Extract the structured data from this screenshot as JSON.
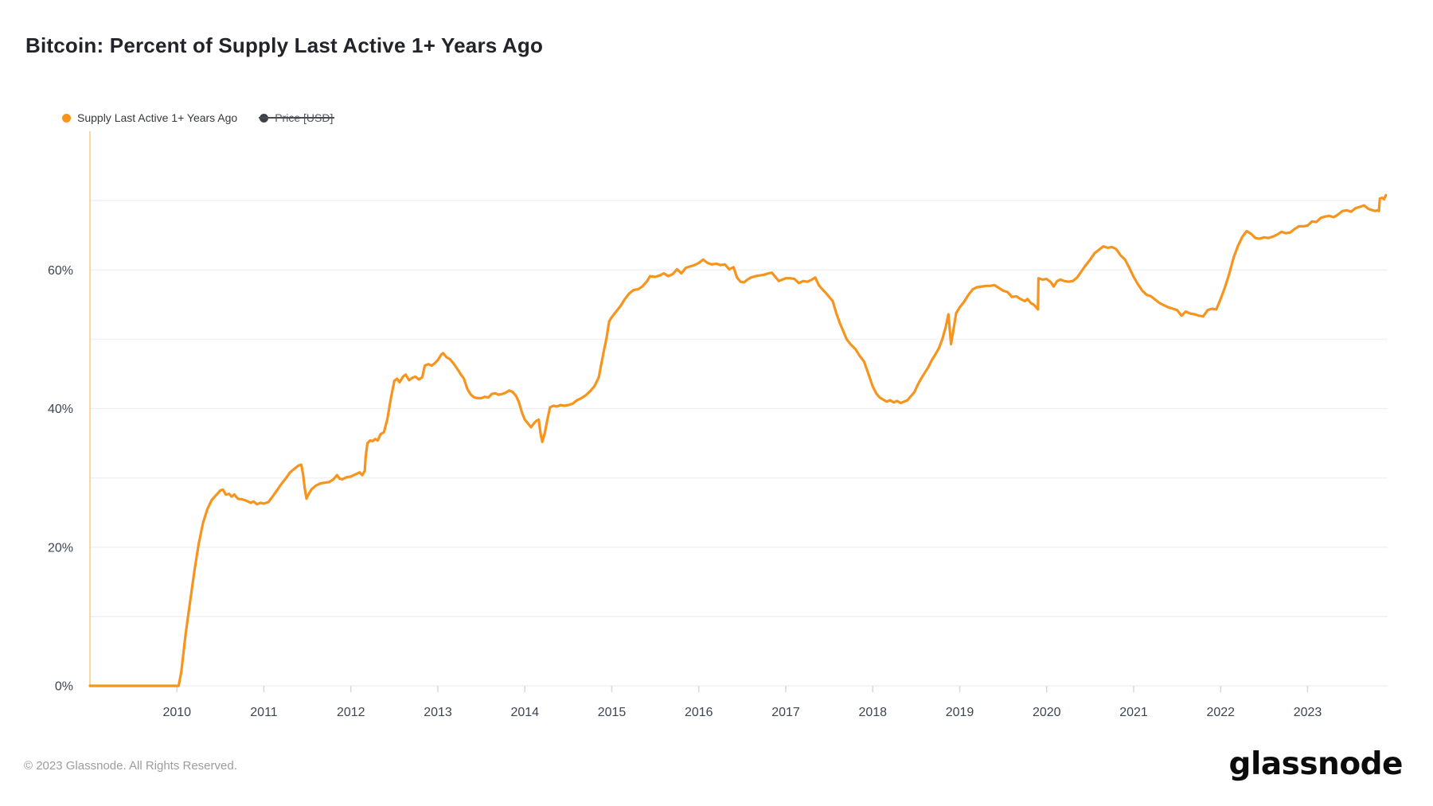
{
  "header": {
    "title": "Bitcoin: Percent of Supply Last Active 1+ Years Ago"
  },
  "legend": {
    "items": [
      {
        "label": "Supply Last Active 1+ Years Ago",
        "color": "#f7941d",
        "enabled": true
      },
      {
        "label": "Price [USD]",
        "color": "#3d4148",
        "enabled": false
      }
    ]
  },
  "footer": {
    "copyright": "© 2023 Glassnode. All Rights Reserved.",
    "brand": "glassnode"
  },
  "chart_data": {
    "type": "line",
    "title": "Bitcoin: Percent of Supply Last Active 1+ Years Ago",
    "series_name": "Supply Last Active 1+ Years Ago",
    "line_color": "#f7941d",
    "axis_line_color": "#f7941d",
    "grid_color": "#f1f1f4",
    "tick_color": "#d8d8dc",
    "label_color": "#3e4450",
    "legend_position": "top-left",
    "grid": true,
    "grid_step": 10,
    "grid_max": 70,
    "xlim": [
      2009.0,
      2023.92
    ],
    "ylim": [
      0,
      80
    ],
    "x_ticks": [
      2010,
      2011,
      2012,
      2013,
      2014,
      2015,
      2016,
      2017,
      2018,
      2019,
      2020,
      2021,
      2022,
      2023
    ],
    "y_ticks": [
      0,
      20,
      40,
      60
    ],
    "y_tick_suffix": "%",
    "points": [
      [
        2009.0,
        0
      ],
      [
        2009.5,
        0
      ],
      [
        2010.02,
        0
      ],
      [
        2010.05,
        2
      ],
      [
        2010.1,
        7.5
      ],
      [
        2010.15,
        12
      ],
      [
        2010.2,
        16.5
      ],
      [
        2010.25,
        20.5
      ],
      [
        2010.3,
        23.5
      ],
      [
        2010.35,
        25.5
      ],
      [
        2010.4,
        26.8
      ],
      [
        2010.45,
        27.5
      ],
      [
        2010.5,
        28.2
      ],
      [
        2010.53,
        28.3
      ],
      [
        2010.56,
        27.6
      ],
      [
        2010.6,
        27.7
      ],
      [
        2010.63,
        27.3
      ],
      [
        2010.66,
        27.6
      ],
      [
        2010.7,
        27.0
      ],
      [
        2010.75,
        26.9
      ],
      [
        2010.8,
        26.7
      ],
      [
        2010.85,
        26.4
      ],
      [
        2010.88,
        26.6
      ],
      [
        2010.92,
        26.2
      ],
      [
        2010.96,
        26.4
      ],
      [
        2011.0,
        26.3
      ],
      [
        2011.05,
        26.5
      ],
      [
        2011.1,
        27.3
      ],
      [
        2011.15,
        28.2
      ],
      [
        2011.2,
        29.1
      ],
      [
        2011.25,
        29.9
      ],
      [
        2011.3,
        30.8
      ],
      [
        2011.35,
        31.3
      ],
      [
        2011.4,
        31.8
      ],
      [
        2011.43,
        31.9
      ],
      [
        2011.45,
        30.5
      ],
      [
        2011.47,
        28.5
      ],
      [
        2011.49,
        27.0
      ],
      [
        2011.52,
        27.8
      ],
      [
        2011.55,
        28.4
      ],
      [
        2011.6,
        28.9
      ],
      [
        2011.65,
        29.2
      ],
      [
        2011.7,
        29.3
      ],
      [
        2011.75,
        29.4
      ],
      [
        2011.8,
        29.8
      ],
      [
        2011.84,
        30.4
      ],
      [
        2011.87,
        29.9
      ],
      [
        2011.9,
        29.8
      ],
      [
        2011.95,
        30.1
      ],
      [
        2012.0,
        30.2
      ],
      [
        2012.05,
        30.5
      ],
      [
        2012.1,
        30.8
      ],
      [
        2012.13,
        30.4
      ],
      [
        2012.16,
        31.0
      ],
      [
        2012.17,
        33.0
      ],
      [
        2012.19,
        35.0
      ],
      [
        2012.22,
        35.4
      ],
      [
        2012.25,
        35.3
      ],
      [
        2012.28,
        35.6
      ],
      [
        2012.31,
        35.4
      ],
      [
        2012.34,
        36.3
      ],
      [
        2012.38,
        36.6
      ],
      [
        2012.42,
        38.5
      ],
      [
        2012.46,
        41.5
      ],
      [
        2012.5,
        44.0
      ],
      [
        2012.53,
        44.3
      ],
      [
        2012.56,
        43.8
      ],
      [
        2012.6,
        44.6
      ],
      [
        2012.63,
        44.9
      ],
      [
        2012.67,
        44.1
      ],
      [
        2012.7,
        44.4
      ],
      [
        2012.74,
        44.6
      ],
      [
        2012.78,
        44.2
      ],
      [
        2012.82,
        44.5
      ],
      [
        2012.85,
        46.2
      ],
      [
        2012.89,
        46.4
      ],
      [
        2012.93,
        46.2
      ],
      [
        2012.97,
        46.6
      ],
      [
        2013.0,
        47.0
      ],
      [
        2013.04,
        47.8
      ],
      [
        2013.06,
        48.0
      ],
      [
        2013.1,
        47.4
      ],
      [
        2013.14,
        47.1
      ],
      [
        2013.18,
        46.5
      ],
      [
        2013.22,
        45.8
      ],
      [
        2013.26,
        45.0
      ],
      [
        2013.3,
        44.3
      ],
      [
        2013.34,
        42.8
      ],
      [
        2013.38,
        42.0
      ],
      [
        2013.42,
        41.6
      ],
      [
        2013.46,
        41.5
      ],
      [
        2013.5,
        41.5
      ],
      [
        2013.54,
        41.7
      ],
      [
        2013.58,
        41.6
      ],
      [
        2013.62,
        42.1
      ],
      [
        2013.66,
        42.2
      ],
      [
        2013.7,
        42.0
      ],
      [
        2013.74,
        42.1
      ],
      [
        2013.78,
        42.3
      ],
      [
        2013.82,
        42.6
      ],
      [
        2013.86,
        42.4
      ],
      [
        2013.9,
        41.8
      ],
      [
        2013.93,
        41.0
      ],
      [
        2013.97,
        39.3
      ],
      [
        2014.0,
        38.4
      ],
      [
        2014.04,
        37.8
      ],
      [
        2014.07,
        37.3
      ],
      [
        2014.1,
        37.8
      ],
      [
        2014.13,
        38.2
      ],
      [
        2014.16,
        38.4
      ],
      [
        2014.18,
        36.5
      ],
      [
        2014.2,
        35.2
      ],
      [
        2014.23,
        36.5
      ],
      [
        2014.26,
        38.5
      ],
      [
        2014.29,
        40.2
      ],
      [
        2014.33,
        40.4
      ],
      [
        2014.37,
        40.3
      ],
      [
        2014.41,
        40.5
      ],
      [
        2014.45,
        40.4
      ],
      [
        2014.5,
        40.5
      ],
      [
        2014.55,
        40.7
      ],
      [
        2014.6,
        41.2
      ],
      [
        2014.65,
        41.5
      ],
      [
        2014.7,
        41.9
      ],
      [
        2014.75,
        42.5
      ],
      [
        2014.8,
        43.2
      ],
      [
        2014.85,
        44.5
      ],
      [
        2014.9,
        47.8
      ],
      [
        2014.94,
        50.2
      ],
      [
        2014.97,
        52.6
      ],
      [
        2015.0,
        53.2
      ],
      [
        2015.05,
        54.0
      ],
      [
        2015.1,
        54.8
      ],
      [
        2015.15,
        55.8
      ],
      [
        2015.2,
        56.6
      ],
      [
        2015.25,
        57.1
      ],
      [
        2015.3,
        57.2
      ],
      [
        2015.35,
        57.6
      ],
      [
        2015.4,
        58.3
      ],
      [
        2015.44,
        59.1
      ],
      [
        2015.5,
        59.0
      ],
      [
        2015.55,
        59.2
      ],
      [
        2015.6,
        59.5
      ],
      [
        2015.65,
        59.1
      ],
      [
        2015.7,
        59.4
      ],
      [
        2015.75,
        60.1
      ],
      [
        2015.8,
        59.5
      ],
      [
        2015.85,
        60.3
      ],
      [
        2015.9,
        60.5
      ],
      [
        2015.95,
        60.7
      ],
      [
        2016.0,
        61.0
      ],
      [
        2016.05,
        61.5
      ],
      [
        2016.1,
        61.0
      ],
      [
        2016.15,
        60.8
      ],
      [
        2016.2,
        60.9
      ],
      [
        2016.25,
        60.7
      ],
      [
        2016.3,
        60.8
      ],
      [
        2016.35,
        60.1
      ],
      [
        2016.4,
        60.4
      ],
      [
        2016.44,
        58.9
      ],
      [
        2016.48,
        58.3
      ],
      [
        2016.52,
        58.2
      ],
      [
        2016.56,
        58.6
      ],
      [
        2016.6,
        58.9
      ],
      [
        2016.65,
        59.1
      ],
      [
        2016.7,
        59.2
      ],
      [
        2016.75,
        59.3
      ],
      [
        2016.8,
        59.5
      ],
      [
        2016.84,
        59.6
      ],
      [
        2016.88,
        59.0
      ],
      [
        2016.92,
        58.4
      ],
      [
        2016.96,
        58.6
      ],
      [
        2017.0,
        58.8
      ],
      [
        2017.05,
        58.8
      ],
      [
        2017.1,
        58.7
      ],
      [
        2017.15,
        58.1
      ],
      [
        2017.2,
        58.4
      ],
      [
        2017.25,
        58.3
      ],
      [
        2017.3,
        58.6
      ],
      [
        2017.34,
        58.9
      ],
      [
        2017.38,
        57.8
      ],
      [
        2017.42,
        57.2
      ],
      [
        2017.46,
        56.7
      ],
      [
        2017.5,
        56.1
      ],
      [
        2017.54,
        55.5
      ],
      [
        2017.58,
        53.8
      ],
      [
        2017.62,
        52.4
      ],
      [
        2017.66,
        51.2
      ],
      [
        2017.7,
        50.0
      ],
      [
        2017.75,
        49.2
      ],
      [
        2017.8,
        48.6
      ],
      [
        2017.85,
        47.6
      ],
      [
        2017.9,
        46.8
      ],
      [
        2017.95,
        45.0
      ],
      [
        2018.0,
        43.2
      ],
      [
        2018.04,
        42.2
      ],
      [
        2018.08,
        41.6
      ],
      [
        2018.12,
        41.3
      ],
      [
        2018.16,
        41.0
      ],
      [
        2018.2,
        41.2
      ],
      [
        2018.24,
        40.9
      ],
      [
        2018.28,
        41.1
      ],
      [
        2018.32,
        40.8
      ],
      [
        2018.36,
        41.0
      ],
      [
        2018.4,
        41.2
      ],
      [
        2018.44,
        41.8
      ],
      [
        2018.48,
        42.4
      ],
      [
        2018.52,
        43.5
      ],
      [
        2018.56,
        44.4
      ],
      [
        2018.6,
        45.2
      ],
      [
        2018.64,
        46.0
      ],
      [
        2018.68,
        47.0
      ],
      [
        2018.72,
        47.8
      ],
      [
        2018.76,
        48.7
      ],
      [
        2018.8,
        50.0
      ],
      [
        2018.84,
        51.8
      ],
      [
        2018.87,
        53.6
      ],
      [
        2018.9,
        49.3
      ],
      [
        2018.93,
        51.5
      ],
      [
        2018.96,
        53.8
      ],
      [
        2019.0,
        54.6
      ],
      [
        2019.05,
        55.4
      ],
      [
        2019.1,
        56.4
      ],
      [
        2019.15,
        57.2
      ],
      [
        2019.2,
        57.5
      ],
      [
        2019.25,
        57.6
      ],
      [
        2019.3,
        57.7
      ],
      [
        2019.35,
        57.7
      ],
      [
        2019.4,
        57.8
      ],
      [
        2019.45,
        57.4
      ],
      [
        2019.5,
        57.0
      ],
      [
        2019.55,
        56.8
      ],
      [
        2019.6,
        56.1
      ],
      [
        2019.65,
        56.2
      ],
      [
        2019.7,
        55.8
      ],
      [
        2019.75,
        55.5
      ],
      [
        2019.78,
        55.8
      ],
      [
        2019.82,
        55.2
      ],
      [
        2019.85,
        55.0
      ],
      [
        2019.88,
        54.6
      ],
      [
        2019.9,
        54.3
      ],
      [
        2019.905,
        58.8
      ],
      [
        2019.95,
        58.6
      ],
      [
        2020.0,
        58.7
      ],
      [
        2020.05,
        58.2
      ],
      [
        2020.08,
        57.6
      ],
      [
        2020.12,
        58.4
      ],
      [
        2020.16,
        58.6
      ],
      [
        2020.2,
        58.4
      ],
      [
        2020.25,
        58.3
      ],
      [
        2020.3,
        58.4
      ],
      [
        2020.35,
        58.9
      ],
      [
        2020.4,
        59.8
      ],
      [
        2020.45,
        60.7
      ],
      [
        2020.5,
        61.5
      ],
      [
        2020.55,
        62.4
      ],
      [
        2020.6,
        62.9
      ],
      [
        2020.65,
        63.4
      ],
      [
        2020.7,
        63.2
      ],
      [
        2020.75,
        63.3
      ],
      [
        2020.8,
        63.0
      ],
      [
        2020.85,
        62.1
      ],
      [
        2020.9,
        61.5
      ],
      [
        2020.95,
        60.3
      ],
      [
        2021.0,
        59.0
      ],
      [
        2021.05,
        57.9
      ],
      [
        2021.1,
        57.0
      ],
      [
        2021.15,
        56.4
      ],
      [
        2021.2,
        56.2
      ],
      [
        2021.25,
        55.7
      ],
      [
        2021.3,
        55.2
      ],
      [
        2021.35,
        54.9
      ],
      [
        2021.4,
        54.6
      ],
      [
        2021.45,
        54.4
      ],
      [
        2021.5,
        54.2
      ],
      [
        2021.55,
        53.4
      ],
      [
        2021.6,
        54.0
      ],
      [
        2021.65,
        53.7
      ],
      [
        2021.7,
        53.6
      ],
      [
        2021.75,
        53.4
      ],
      [
        2021.8,
        53.3
      ],
      [
        2021.85,
        54.2
      ],
      [
        2021.9,
        54.4
      ],
      [
        2021.95,
        54.3
      ],
      [
        2022.0,
        55.8
      ],
      [
        2022.05,
        57.5
      ],
      [
        2022.1,
        59.5
      ],
      [
        2022.15,
        61.8
      ],
      [
        2022.2,
        63.5
      ],
      [
        2022.25,
        64.8
      ],
      [
        2022.3,
        65.6
      ],
      [
        2022.35,
        65.2
      ],
      [
        2022.4,
        64.6
      ],
      [
        2022.45,
        64.5
      ],
      [
        2022.5,
        64.7
      ],
      [
        2022.55,
        64.6
      ],
      [
        2022.6,
        64.8
      ],
      [
        2022.65,
        65.1
      ],
      [
        2022.7,
        65.5
      ],
      [
        2022.75,
        65.3
      ],
      [
        2022.8,
        65.4
      ],
      [
        2022.85,
        65.9
      ],
      [
        2022.9,
        66.3
      ],
      [
        2022.95,
        66.3
      ],
      [
        2023.0,
        66.4
      ],
      [
        2023.05,
        67.0
      ],
      [
        2023.1,
        66.9
      ],
      [
        2023.15,
        67.5
      ],
      [
        2023.2,
        67.7
      ],
      [
        2023.25,
        67.8
      ],
      [
        2023.3,
        67.6
      ],
      [
        2023.35,
        68.0
      ],
      [
        2023.4,
        68.5
      ],
      [
        2023.45,
        68.6
      ],
      [
        2023.5,
        68.4
      ],
      [
        2023.55,
        68.9
      ],
      [
        2023.6,
        69.1
      ],
      [
        2023.65,
        69.3
      ],
      [
        2023.7,
        68.8
      ],
      [
        2023.75,
        68.6
      ],
      [
        2023.78,
        68.5
      ],
      [
        2023.8,
        68.6
      ],
      [
        2023.82,
        68.5
      ],
      [
        2023.83,
        70.3
      ],
      [
        2023.86,
        70.4
      ],
      [
        2023.88,
        70.2
      ],
      [
        2023.9,
        70.8
      ]
    ]
  }
}
